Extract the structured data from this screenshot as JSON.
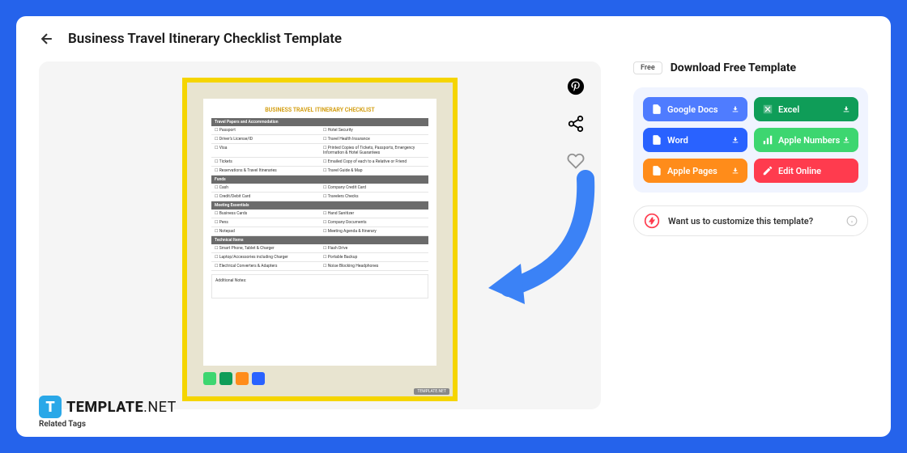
{
  "page": {
    "title": "Business Travel Itinerary Checklist Template"
  },
  "document": {
    "title": "BUSINESS TRAVEL ITINERARY CHECKLIST",
    "sections": [
      {
        "header": "Travel Papers and Accommodation",
        "rows": [
          [
            "Passport",
            "Hotel Security"
          ],
          [
            "Driver's License/ID",
            "Travel Health Insurance"
          ],
          [
            "Visa",
            "Printed Copies of Tickets, Passports, Emergency Information & Hotel Guarantees"
          ],
          [
            "Tickets",
            "Emailed Copy of each to a Relative or Friend"
          ],
          [
            "Reservations & Travel Itineraries",
            "Travel Guide & Map"
          ]
        ]
      },
      {
        "header": "Funds",
        "rows": [
          [
            "Cash",
            "Company Credit Card"
          ],
          [
            "Credit/Debit Card",
            "Travelers Checks"
          ]
        ]
      },
      {
        "header": "Meeting Essentials",
        "rows": [
          [
            "Business Cards",
            "Hand Sanitizer"
          ],
          [
            "Pens",
            "Company Documents"
          ],
          [
            "Notepad",
            "Meeting Agenda & Itinerary"
          ]
        ]
      },
      {
        "header": "Technical Items",
        "rows": [
          [
            "Smart Phone, Tablet & Charger",
            "Flash Drive"
          ],
          [
            "Laptop/Accessories including Charger",
            "Portable Backup"
          ],
          [
            "Electrical Converters & Adapters",
            "Noise Blocking Headphones"
          ]
        ]
      }
    ],
    "notes_label": "Additional Notes:",
    "watermark": "TEMPLATE.NET"
  },
  "sidebar": {
    "free_badge": "Free",
    "download_title": "Download Free Template",
    "buttons": {
      "gdocs": "Google Docs",
      "excel": "Excel",
      "word": "Word",
      "numbers": "Apple Numbers",
      "pages": "Apple Pages",
      "edit": "Edit Online"
    },
    "customize_text": "Want us to customize this template?"
  },
  "logo": {
    "brand": "TEMPLATE",
    "suffix": ".NET"
  },
  "tags_label": "Related Tags",
  "colors": {
    "gdocs": "#4f7cff",
    "excel": "#0f9d58",
    "word": "#2962ff",
    "numbers": "#3dd670",
    "pages": "#ff8c1a",
    "edit": "#ff3b4e"
  },
  "format_icon_colors": [
    "#3dd670",
    "#0f9d58",
    "#ff8c1a",
    "#2962ff"
  ]
}
